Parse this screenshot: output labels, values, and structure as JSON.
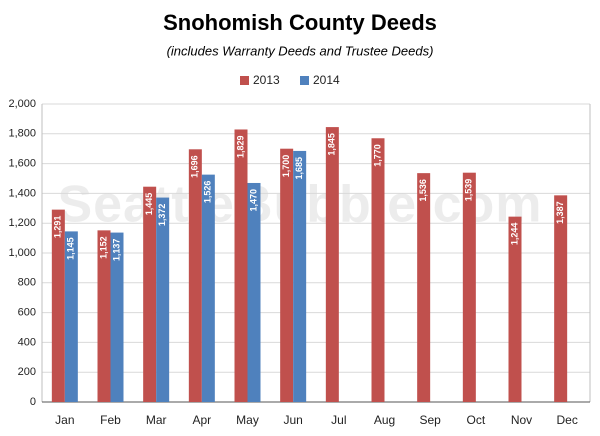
{
  "chart_data": {
    "type": "bar",
    "title": "Snohomish County Deeds",
    "subtitle": "(includes Warranty Deeds and Trustee Deeds)",
    "watermark": "SeattleBubble.com",
    "categories": [
      "Jan",
      "Feb",
      "Mar",
      "Apr",
      "May",
      "Jun",
      "Jul",
      "Aug",
      "Sep",
      "Oct",
      "Nov",
      "Dec"
    ],
    "series": [
      {
        "name": "2013",
        "color": "#c0504d",
        "values": [
          1291,
          1152,
          1445,
          1696,
          1829,
          1700,
          1845,
          1770,
          1536,
          1539,
          1244,
          1387
        ],
        "value_labels": [
          "1,291",
          "1,152",
          "1,445",
          "1,696",
          "1,829",
          "1,700",
          "1,845",
          "1,770",
          "1,536",
          "1,539",
          "1,244",
          "1,387"
        ]
      },
      {
        "name": "2014",
        "color": "#4f81bd",
        "values": [
          1145,
          1137,
          1372,
          1526,
          1470,
          1685,
          null,
          null,
          null,
          null,
          null,
          null
        ],
        "value_labels": [
          "1,145",
          "1,137",
          "1,372",
          "1,526",
          "1,470",
          "1,685",
          null,
          null,
          null,
          null,
          null,
          null
        ]
      }
    ],
    "ylim": [
      0,
      2000
    ],
    "yticks": [
      0,
      200,
      400,
      600,
      800,
      {
        "value": 1000,
        "label": "1,000"
      },
      {
        "value": 1200,
        "label": "1,200"
      },
      {
        "value": 1400,
        "label": "1,400"
      },
      {
        "value": 1600,
        "label": "1,600"
      },
      {
        "value": 1800,
        "label": "1,800"
      },
      {
        "value": 2000,
        "label": "2,000"
      }
    ],
    "grid": true,
    "legend": "top"
  }
}
